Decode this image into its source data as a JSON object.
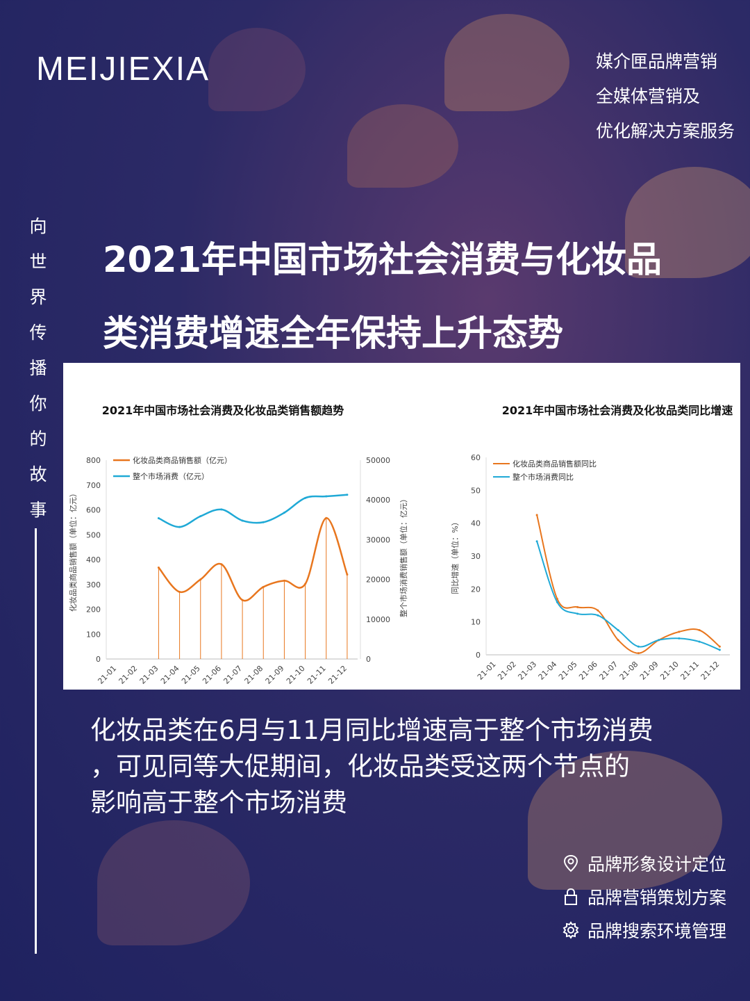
{
  "brand": "MEIJIEXIA",
  "tagline": [
    "媒介匣品牌营销",
    "全媒体营销及",
    "优化解决方案服务"
  ],
  "vertical_text": [
    "向",
    "世",
    "界",
    "传",
    "播",
    "你",
    "的",
    "故",
    "事"
  ],
  "headline": [
    "2021年中国市场社会消费与化妆品",
    "类消费增速全年保持上升态势"
  ],
  "body_text": [
    "化妆品类在6月与11月同比增速高于整个市场消费",
    "，可见同等大促期间，化妆品类受这两个节点的",
    "影响高于整个市场消费"
  ],
  "services": [
    {
      "icon": "location-pin-icon",
      "label": "品牌形象设计定位"
    },
    {
      "icon": "lock-icon",
      "label": "品牌营销策划方案"
    },
    {
      "icon": "gear-icon",
      "label": "品牌搜索环境管理"
    }
  ],
  "colors": {
    "cosmetics": "#e8761e",
    "market": "#1fa9d6"
  },
  "chart_data": [
    {
      "type": "line",
      "title": "2021年中国市场社会消费及化妆品类销售额趋势",
      "categories": [
        "21-01",
        "21-02",
        "21-03",
        "21-04",
        "21-05",
        "21-06",
        "21-07",
        "21-08",
        "21-09",
        "21-10",
        "21-11",
        "21-12"
      ],
      "ylabel_left": "化妆品类商品销售额（单位：亿元）",
      "ylabel_right": "整个市场消费销售额（单位：亿元）",
      "ylim_left": [
        0,
        800
      ],
      "ylim_right": [
        0,
        50000
      ],
      "yticks_left": [
        0,
        100,
        200,
        300,
        400,
        500,
        600,
        700,
        800
      ],
      "yticks_right": [
        0,
        10000,
        20000,
        30000,
        40000,
        50000
      ],
      "legend_position": "top-left",
      "series": [
        {
          "name": "化妆品类商品销售额（亿元）",
          "axis": "left",
          "values": [
            null,
            null,
            368,
            270,
            320,
            381,
            237,
            290,
            315,
            302,
            567,
            340
          ]
        },
        {
          "name": "整个市场消费（亿元）",
          "axis": "right",
          "values": [
            null,
            null,
            35400,
            33200,
            35900,
            37600,
            34800,
            34400,
            36800,
            40500,
            40900,
            41300
          ]
        }
      ]
    },
    {
      "type": "line",
      "title": "2021年中国市场社会消费及化妆品类同比增速",
      "categories": [
        "21-01",
        "21-02",
        "21-03",
        "21-04",
        "21-05",
        "21-06",
        "21-07",
        "21-08",
        "21-09",
        "21-10",
        "21-11",
        "21-12"
      ],
      "ylabel": "同比增速（单位：%）",
      "ylim": [
        0,
        60
      ],
      "yticks": [
        0,
        10,
        20,
        30,
        40,
        50,
        60
      ],
      "legend_position": "top-left",
      "series": [
        {
          "name": "化妆品类商品销售额同比",
          "values": [
            null,
            null,
            42.5,
            17,
            14.5,
            13.5,
            4.5,
            0.5,
            4.5,
            7,
            7.5,
            2.5
          ]
        },
        {
          "name": "整个市场消费同比",
          "values": [
            null,
            null,
            34.5,
            16,
            12.5,
            12,
            7.5,
            2.5,
            4.5,
            5,
            4,
            1.5
          ]
        }
      ]
    }
  ]
}
